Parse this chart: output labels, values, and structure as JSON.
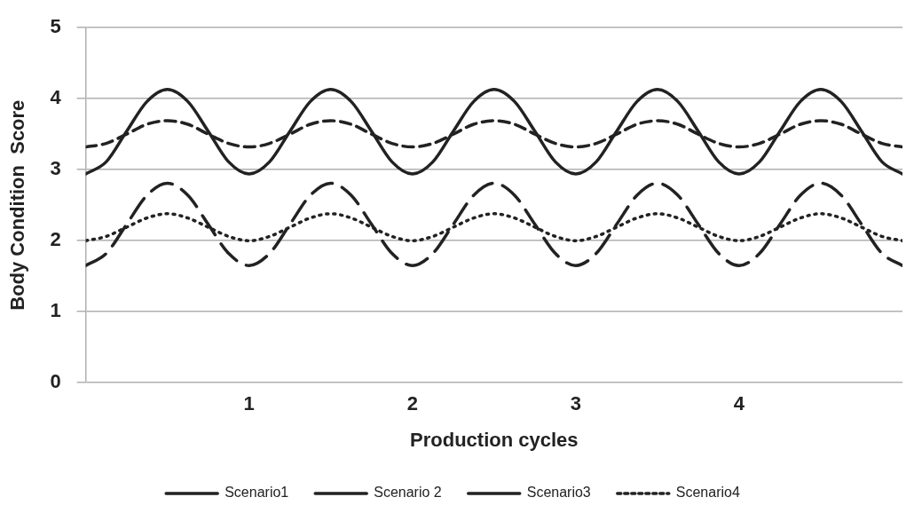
{
  "chart_data": {
    "type": "line",
    "xlabel": "Production cycles",
    "ylabel": "Body Condition  Score",
    "x": [
      0,
      0.125,
      0.25,
      0.375,
      0.5,
      0.625,
      0.75,
      0.875,
      1,
      1.125,
      1.25,
      1.375,
      1.5,
      1.625,
      1.75,
      1.875,
      2,
      2.125,
      2.25,
      2.375,
      2.5,
      2.625,
      2.75,
      2.875,
      3,
      3.125,
      3.25,
      3.375,
      3.5,
      3.625,
      3.75,
      3.875,
      4,
      4.125,
      4.25,
      4.375,
      4.5,
      4.625,
      4.75,
      4.875,
      5
    ],
    "xlim": [
      0,
      5
    ],
    "xticks": [
      1,
      2,
      3,
      4
    ],
    "ylim": [
      0,
      5
    ],
    "yticks": [
      0,
      1,
      2,
      3,
      4,
      5
    ],
    "grid": "y",
    "legend": "bottom",
    "marker": "none",
    "series": [
      {
        "name": "Scenario1",
        "color": "#222222",
        "line_style": "solid",
        "values": [
          2.94,
          3.11,
          3.54,
          3.96,
          4.13,
          3.96,
          3.54,
          3.11,
          2.94,
          3.11,
          3.54,
          3.96,
          4.13,
          3.96,
          3.54,
          3.11,
          2.94,
          3.11,
          3.54,
          3.96,
          4.13,
          3.96,
          3.54,
          3.11,
          2.94,
          3.11,
          3.54,
          3.96,
          4.13,
          3.96,
          3.54,
          3.11,
          2.94,
          3.11,
          3.54,
          3.96,
          4.13,
          3.96,
          3.54,
          3.11,
          2.94
        ]
      },
      {
        "name": "Scenario 2",
        "color": "#222222",
        "line_style": "dashed",
        "values": [
          1.65,
          1.82,
          2.23,
          2.64,
          2.81,
          2.64,
          2.23,
          1.82,
          1.65,
          1.82,
          2.23,
          2.64,
          2.81,
          2.64,
          2.23,
          1.82,
          1.65,
          1.82,
          2.23,
          2.64,
          2.81,
          2.64,
          2.23,
          1.82,
          1.65,
          1.82,
          2.23,
          2.64,
          2.81,
          2.64,
          2.23,
          1.82,
          1.65,
          1.82,
          2.23,
          2.64,
          2.81,
          2.64,
          2.23,
          1.82,
          1.65
        ]
      },
      {
        "name": "Scenario3",
        "color": "#222222",
        "line_style": "dashed",
        "values": [
          3.32,
          3.37,
          3.5,
          3.64,
          3.69,
          3.64,
          3.5,
          3.37,
          3.32,
          3.37,
          3.5,
          3.64,
          3.69,
          3.64,
          3.5,
          3.37,
          3.32,
          3.37,
          3.5,
          3.64,
          3.69,
          3.64,
          3.5,
          3.37,
          3.32,
          3.37,
          3.5,
          3.64,
          3.69,
          3.64,
          3.5,
          3.37,
          3.32,
          3.37,
          3.5,
          3.64,
          3.69,
          3.64,
          3.5,
          3.37,
          3.32
        ]
      },
      {
        "name": "Scenario4",
        "color": "#222222",
        "line_style": "dotted",
        "values": [
          2.0,
          2.06,
          2.19,
          2.32,
          2.38,
          2.32,
          2.19,
          2.06,
          2.0,
          2.06,
          2.19,
          2.32,
          2.38,
          2.32,
          2.19,
          2.06,
          2.0,
          2.06,
          2.19,
          2.32,
          2.38,
          2.32,
          2.19,
          2.06,
          2.0,
          2.06,
          2.19,
          2.32,
          2.38,
          2.32,
          2.19,
          2.06,
          2.0,
          2.06,
          2.19,
          2.32,
          2.38,
          2.32,
          2.19,
          2.06,
          2.0
        ]
      }
    ]
  }
}
